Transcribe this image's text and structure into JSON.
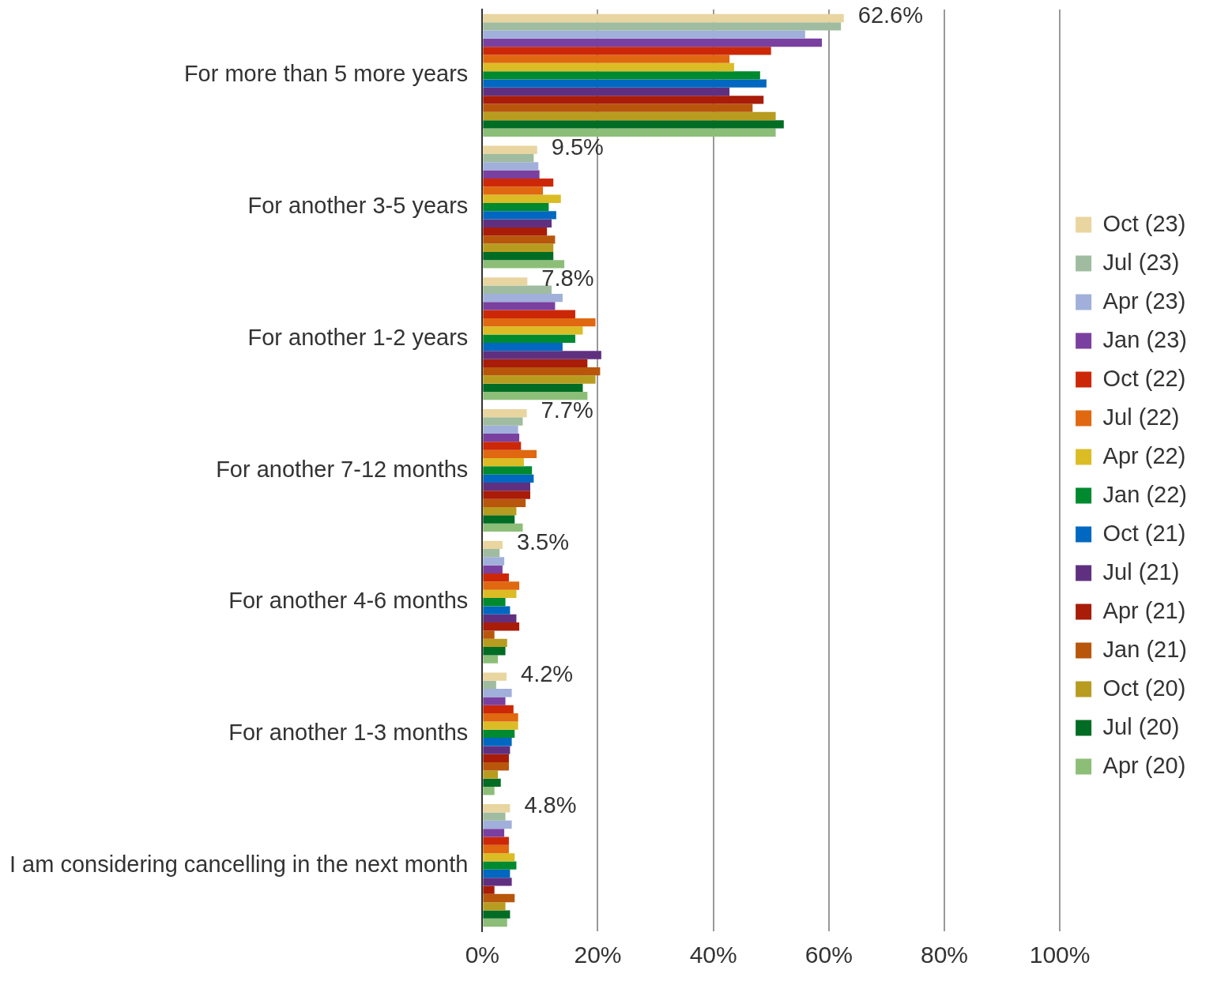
{
  "chart_data": {
    "type": "bar",
    "orientation": "horizontal",
    "categories": [
      "For more than 5 more years",
      "For another 3-5 years",
      "For another 1-2 years",
      "For another 7-12 months",
      "For another 4-6 months",
      "For another 1-3 months",
      "I am considering cancelling in the next month"
    ],
    "xlim": [
      0,
      100
    ],
    "xticks": [
      {
        "value": 0,
        "label": "0%"
      },
      {
        "value": 20,
        "label": "20%"
      },
      {
        "value": 40,
        "label": "40%"
      },
      {
        "value": 60,
        "label": "60%"
      },
      {
        "value": 80,
        "label": "80%"
      },
      {
        "value": 100,
        "label": "100%"
      }
    ],
    "grid": "x",
    "legend": "right",
    "series": [
      {
        "name": "Oct (23)",
        "color": "#e8d5a0",
        "values": [
          62.6,
          9.5,
          7.8,
          7.7,
          3.5,
          4.2,
          4.8
        ],
        "value_labels": [
          "62.6%",
          "9.5%",
          "7.8%",
          "7.7%",
          "3.5%",
          "4.2%",
          "4.8%"
        ]
      },
      {
        "name": "Jul (23)",
        "color": "#a0bca0",
        "values": [
          62.1,
          8.9,
          12.0,
          7.0,
          3.0,
          2.4,
          4.0
        ]
      },
      {
        "name": "Apr (23)",
        "color": "#a0b0da",
        "values": [
          55.9,
          9.7,
          13.9,
          6.2,
          3.8,
          5.1,
          5.1
        ]
      },
      {
        "name": "Jan (23)",
        "color": "#7a40a0",
        "values": [
          58.8,
          9.9,
          12.6,
          6.4,
          3.5,
          4.0,
          3.8
        ]
      },
      {
        "name": "Oct (22)",
        "color": "#cc2808",
        "values": [
          50.0,
          12.3,
          16.1,
          6.7,
          4.6,
          5.4,
          4.6
        ]
      },
      {
        "name": "Jul (22)",
        "color": "#e06810",
        "values": [
          42.8,
          10.5,
          19.6,
          9.4,
          6.4,
          6.2,
          4.6
        ]
      },
      {
        "name": "Apr (22)",
        "color": "#dcbc24",
        "values": [
          43.6,
          13.6,
          17.4,
          7.2,
          5.9,
          6.2,
          5.6
        ]
      },
      {
        "name": "Jan (22)",
        "color": "#008a30",
        "values": [
          48.1,
          11.5,
          16.1,
          8.6,
          4.0,
          5.6,
          5.9
        ]
      },
      {
        "name": "Oct (21)",
        "color": "#0068c0",
        "values": [
          49.2,
          12.8,
          13.9,
          8.9,
          4.8,
          5.1,
          4.8
        ]
      },
      {
        "name": "Jul (21)",
        "color": "#603080",
        "values": [
          42.8,
          12.0,
          20.6,
          8.3,
          5.9,
          4.8,
          5.1
        ]
      },
      {
        "name": "Apr (21)",
        "color": "#a81c08",
        "values": [
          48.7,
          11.2,
          18.2,
          8.3,
          6.4,
          4.6,
          2.1
        ]
      },
      {
        "name": "Jan (21)",
        "color": "#b8560c",
        "values": [
          46.8,
          12.6,
          20.4,
          7.5,
          2.1,
          4.6,
          5.6
        ]
      },
      {
        "name": "Oct (20)",
        "color": "#b89c20",
        "values": [
          50.8,
          12.3,
          19.6,
          5.9,
          4.3,
          2.7,
          4.0
        ]
      },
      {
        "name": "Jul (20)",
        "color": "#006c24",
        "values": [
          52.2,
          12.3,
          17.4,
          5.6,
          4.0,
          3.2,
          4.8
        ]
      },
      {
        "name": "Apr (20)",
        "color": "#8cbe78",
        "values": [
          50.8,
          14.2,
          18.2,
          7.0,
          2.7,
          2.1,
          4.3
        ]
      }
    ]
  }
}
